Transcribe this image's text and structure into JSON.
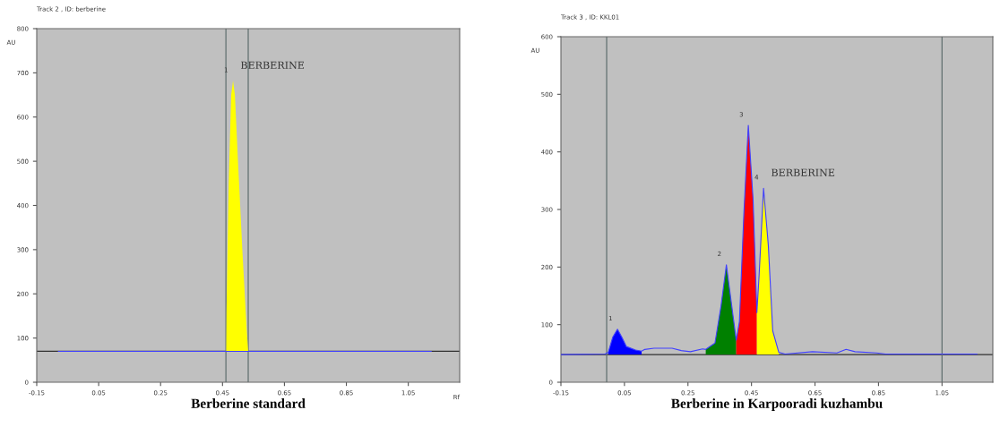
{
  "chart_data": [
    {
      "type": "line",
      "title": "Track 2 , ID: berberine",
      "xlabel": "Rf",
      "ylabel": "AU",
      "xlim": [
        -0.15,
        1.216
      ],
      "ylim": [
        0,
        800
      ],
      "xticks": [
        -0.15,
        0.05,
        0.25,
        0.45,
        0.65,
        0.85,
        1.05
      ],
      "yticks": [
        0,
        100,
        200,
        300,
        400,
        500,
        600,
        700,
        800
      ],
      "grid": false,
      "marker": "none",
      "line_style": "solid",
      "series": [
        {
          "type": "line",
          "color": "#4040ff",
          "x": [
            -0.08,
            0.462,
            0.533,
            1.124
          ],
          "values": [
            70,
            70,
            70,
            70
          ]
        },
        {
          "type": "area",
          "color": "#ffff00",
          "x": [
            0.462,
            0.463,
            0.47,
            0.478,
            0.484,
            0.49,
            0.5,
            0.514,
            0.528,
            0.533
          ],
          "values": [
            70,
            160,
            450,
            650,
            682,
            650,
            500,
            300,
            120,
            70
          ]
        }
      ],
      "ref_lines": [
        {
          "axis": "y",
          "value": 70,
          "label": null,
          "color": "#303030"
        },
        {
          "axis": "x",
          "value": 0.461,
          "label": null,
          "color": "#607070"
        },
        {
          "axis": "x",
          "value": 0.533,
          "label": null,
          "color": "#607070"
        }
      ],
      "annotations": [
        {
          "text": "1",
          "x": 0.484,
          "y": 682
        },
        {
          "text": "BERBERINE",
          "x": 0.484,
          "y": 682
        },
        "Berberine standard"
      ]
    },
    {
      "type": "line",
      "title": "Track 3 , ID: KKL01",
      "ylabel": "AU",
      "xlim": [
        -0.15,
        1.21
      ],
      "ylim": [
        0,
        600
      ],
      "xticks": [
        -0.15,
        0.05,
        0.25,
        0.45,
        0.65,
        0.85,
        1.05
      ],
      "yticks": [
        0,
        100,
        200,
        300,
        400,
        500,
        600
      ],
      "grid": false,
      "marker": "none",
      "line_style": "solid",
      "series": [
        {
          "type": "line",
          "color": "#4040ff",
          "x": [
            -0.15,
            -0.011,
            -0.001,
            0.013,
            0.028,
            0.042,
            0.056,
            0.085,
            0.104,
            0.114,
            0.143,
            0.2,
            0.229,
            0.258,
            0.296,
            0.306,
            0.335,
            0.354,
            0.371,
            0.388,
            0.402,
            0.412,
            0.426,
            0.44,
            0.455,
            0.467,
            0.474,
            0.488,
            0.503,
            0.517,
            0.536,
            0.556,
            0.642,
            0.719,
            0.748,
            0.776,
            0.844,
            0.872,
            0.968,
            1.16
          ],
          "values": [
            48,
            49,
            52,
            78,
            92,
            78,
            62,
            56,
            54,
            57,
            59,
            59,
            55,
            53,
            58,
            57,
            68,
            132,
            204,
            132,
            73,
            105,
            292,
            446,
            318,
            121,
            185,
            337,
            238,
            89,
            52,
            49,
            53,
            51,
            57,
            53,
            51,
            49,
            49,
            49
          ]
        },
        {
          "type": "area",
          "color": "#0000ff",
          "x": [
            -0.001,
            0.013,
            0.028,
            0.042,
            0.056,
            0.085,
            0.104
          ],
          "values": [
            52,
            78,
            92,
            78,
            62,
            56,
            54
          ]
        },
        {
          "type": "area",
          "color": "#008000",
          "x": [
            0.306,
            0.335,
            0.354,
            0.371,
            0.388,
            0.402
          ],
          "values": [
            57,
            68,
            132,
            204,
            132,
            73
          ]
        },
        {
          "type": "area",
          "color": "#ff0000",
          "x": [
            0.402,
            0.412,
            0.426,
            0.44,
            0.455,
            0.467
          ],
          "values": [
            73,
            105,
            292,
            446,
            318,
            121
          ]
        },
        {
          "type": "area",
          "color": "#ffff00",
          "x": [
            0.467,
            0.474,
            0.488,
            0.503,
            0.517,
            0.536
          ],
          "values": [
            121,
            185,
            337,
            238,
            89,
            52
          ]
        }
      ],
      "ref_lines": [
        {
          "axis": "y",
          "value": 48,
          "label": null,
          "color": "#303030"
        },
        {
          "axis": "x",
          "value": -0.006,
          "label": null,
          "color": "#607070"
        },
        {
          "axis": "x",
          "value": 1.05,
          "label": null,
          "color": "#607070"
        }
      ],
      "annotations": [
        {
          "text": "1",
          "x": 0.028,
          "y": 92
        },
        {
          "text": "2",
          "x": 0.371,
          "y": 204
        },
        {
          "text": "3",
          "x": 0.44,
          "y": 446
        },
        {
          "text": "4",
          "x": 0.488,
          "y": 337
        },
        {
          "text": "BERBERINE",
          "x": 0.488,
          "y": 337
        },
        "Berberine in Karpooradi kuzhambu"
      ]
    }
  ]
}
